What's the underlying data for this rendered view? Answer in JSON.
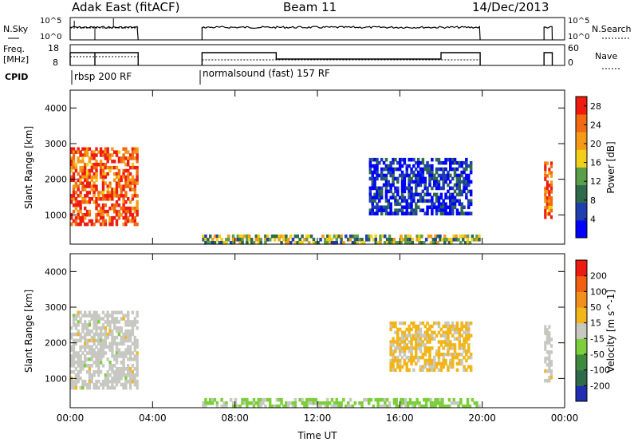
{
  "header": {
    "station": "Adak East (fitACF)",
    "beam": "Beam 11",
    "date": "14/Dec/2013"
  },
  "params": {
    "nsky_label": "N.Sky",
    "nsearch_label": "N.Search",
    "freq_label": "Freq.",
    "freq_unit": "[MHz]",
    "nave_label": "Nave",
    "cpid_label": "CPID",
    "left_ticks": [
      "10^5",
      "10^0"
    ],
    "right_ticks": [
      "10^5",
      "10^0"
    ],
    "freq_ticks": [
      "18",
      "8"
    ],
    "nave_ticks": [
      "60",
      "0"
    ],
    "cpid_segments": [
      {
        "label": "rbsp 200 RF",
        "start": 0.0,
        "end": 3.3
      },
      {
        "label": "normalsound (fast) 157 RF",
        "start": 6.4,
        "end": 19.9
      }
    ]
  },
  "chart_data": [
    {
      "type": "heatmap",
      "panel": "power",
      "ylabel": "Slant Range [km]",
      "yticks": [
        "1000",
        "2000",
        "3000",
        "4000"
      ],
      "ylim": [
        180,
        4500
      ],
      "xlim": [
        0,
        24
      ],
      "colorbar": {
        "label": "Power [dB]",
        "ticks": [
          "4",
          "8",
          "12",
          "16",
          "20",
          "24",
          "28"
        ],
        "range": [
          0,
          30
        ],
        "colors": [
          "#0000ff",
          "#1f3fb0",
          "#2f6a4a",
          "#5a9f4a",
          "#f2ce1a",
          "#f59a16",
          "#f06b12",
          "#ee1c10"
        ]
      },
      "echo_regions": [
        {
          "t0": 0.0,
          "t1": 3.3,
          "r0": 700,
          "r1": 1500,
          "level": 0.9
        },
        {
          "t0": 0.0,
          "t1": 3.3,
          "r0": 1500,
          "r1": 2900,
          "level": 0.85
        },
        {
          "t0": 6.4,
          "t1": 19.9,
          "r0": 180,
          "r1": 450,
          "level": 0.45
        },
        {
          "t0": 14.5,
          "t1": 19.5,
          "r0": 1000,
          "r1": 2600,
          "level": 0.12
        },
        {
          "t0": 23.0,
          "t1": 23.4,
          "r0": 900,
          "r1": 2500,
          "level": 0.85
        }
      ]
    },
    {
      "type": "heatmap",
      "panel": "velocity",
      "xlabel": "Time UT",
      "ylabel": "Slant Range [km]",
      "xticks": [
        "00:00",
        "04:00",
        "08:00",
        "12:00",
        "16:00",
        "20:00",
        "00:00"
      ],
      "yticks": [
        "1000",
        "2000",
        "3000",
        "4000"
      ],
      "ylim": [
        180,
        4500
      ],
      "xlim": [
        0,
        24
      ],
      "colorbar": {
        "label": "Velocity [m s^-1]",
        "ticks": [
          "200",
          "100",
          "50",
          "15",
          "-15",
          "-50",
          "-100",
          "-200"
        ],
        "range": [
          -250,
          250
        ],
        "colors": [
          "#1f2fb0",
          "#2f6a4a",
          "#3f8a3f",
          "#7ccf3a",
          "#c8c8c2",
          "#f2b51a",
          "#f0901a",
          "#f06010",
          "#ee1c10"
        ]
      },
      "echo_regions": [
        {
          "t0": 0.0,
          "t1": 3.3,
          "r0": 700,
          "r1": 1500,
          "level": 0.0
        },
        {
          "t0": 0.0,
          "t1": 3.3,
          "r0": 1500,
          "r1": 2900,
          "level": 0.0
        },
        {
          "t0": 6.4,
          "t1": 19.9,
          "r0": 180,
          "r1": 450,
          "level": -40
        },
        {
          "t0": 15.5,
          "t1": 19.5,
          "r0": 1200,
          "r1": 2600,
          "level": 40
        },
        {
          "t0": 23.0,
          "t1": 23.4,
          "r0": 900,
          "r1": 2500,
          "level": 0.0
        }
      ]
    }
  ]
}
